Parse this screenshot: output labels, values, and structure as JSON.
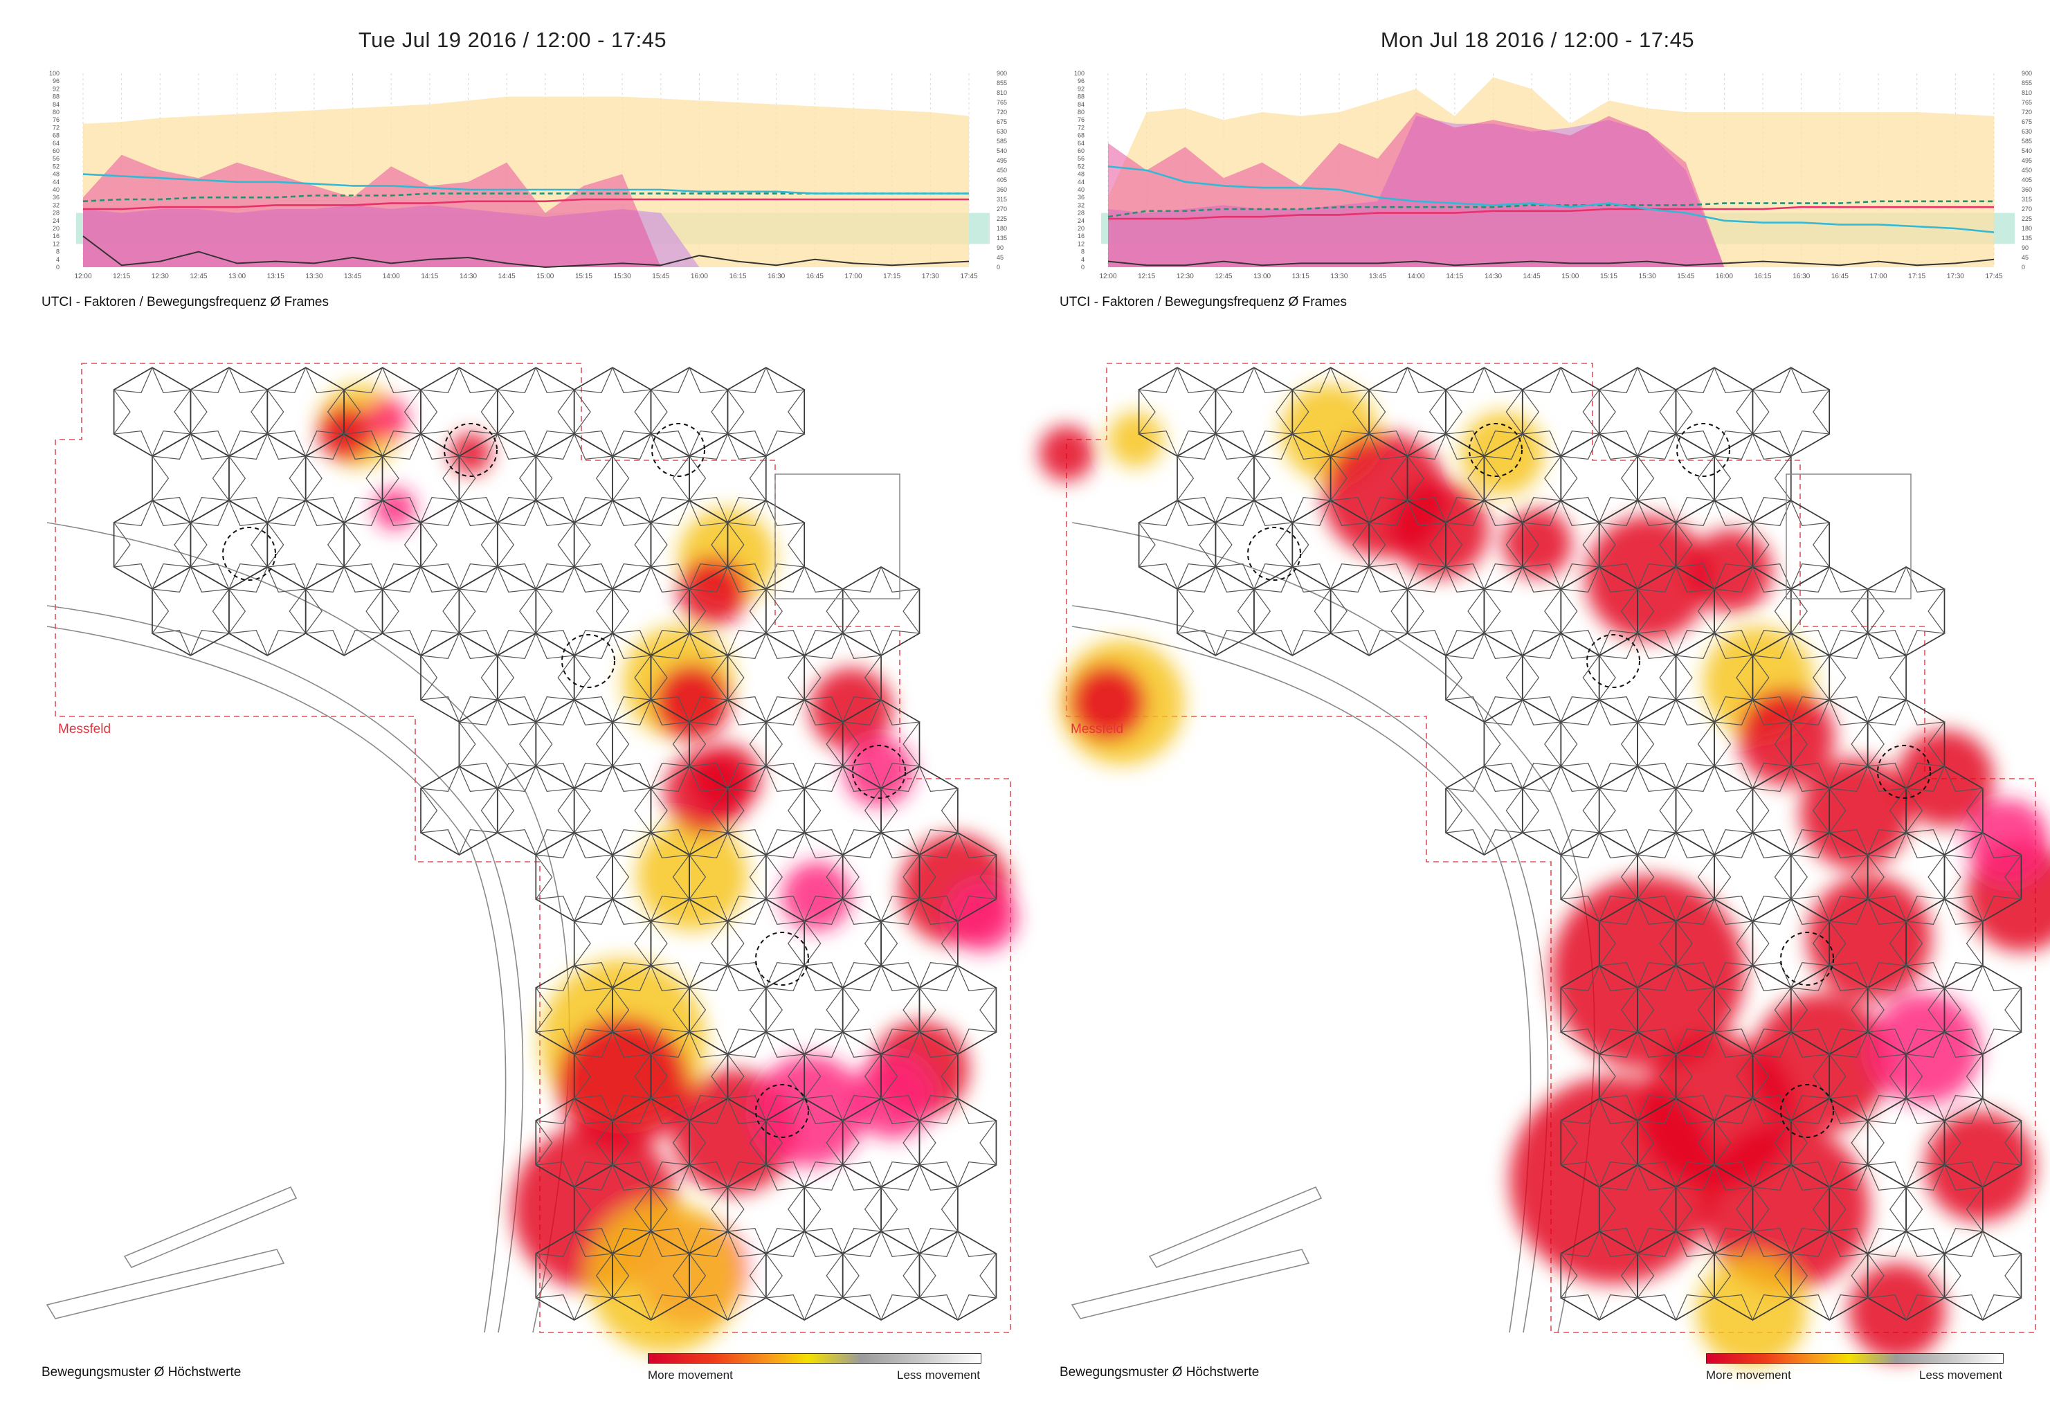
{
  "legend": {
    "more": "More movement",
    "less": "Less movement"
  },
  "captions": {
    "chart": "UTCI - Faktoren / Bewegungsfrequenz Ø Frames",
    "map": "Bewegungsmuster Ø Höchstwerte",
    "map_right": "Bewegungsmuster  Ø Höchstwerte",
    "field": "Messfeld"
  },
  "colors": {
    "yellow_area": "#fde2a6",
    "pink_area": "#e8539f",
    "violet_area": "#c98be6",
    "band": "#bfe9dc",
    "cyan": "#35b8d4",
    "red": "#e8306a",
    "teal_dash": "#2a8f72",
    "black": "#333333",
    "heat_red": "#e3001b",
    "heat_magenta": "#ff1f7a",
    "heat_yellow": "#f6c319"
  },
  "chart_data": [
    {
      "type": "area",
      "title": "Tue Jul 19 2016  /  12:00 - 17:45",
      "ylim": [
        0,
        100
      ],
      "y2lim": [
        0,
        900
      ],
      "y_ticks": [
        "0",
        "4",
        "8",
        "12",
        "16",
        "20",
        "24",
        "28",
        "32",
        "36",
        "40",
        "44",
        "48",
        "52",
        "56",
        "60",
        "64",
        "68",
        "72",
        "76",
        "80",
        "84",
        "88",
        "92",
        "96",
        "100"
      ],
      "y2_ticks": [
        "0",
        "45",
        "90",
        "135",
        "180",
        "225",
        "270",
        "315",
        "360",
        "405",
        "450",
        "495",
        "540",
        "585",
        "630",
        "675",
        "720",
        "765",
        "810",
        "855",
        "900"
      ],
      "categories": [
        "12:00",
        "12:15",
        "12:30",
        "12:45",
        "13:00",
        "13:15",
        "13:30",
        "13:45",
        "14:00",
        "14:15",
        "14:30",
        "14:45",
        "15:00",
        "15:15",
        "15:30",
        "15:45",
        "16:00",
        "16:15",
        "16:30",
        "16:45",
        "17:00",
        "17:15",
        "17:30",
        "17:45"
      ],
      "comfort_band": [
        12,
        28
      ],
      "series": [
        {
          "name": "yellow-area",
          "kind": "area",
          "values": [
            74,
            75,
            77,
            78,
            79,
            80,
            81,
            82,
            83,
            84,
            86,
            88,
            88,
            88,
            88,
            87,
            86,
            85,
            84,
            83,
            82,
            81,
            80,
            78
          ]
        },
        {
          "name": "pink-area",
          "kind": "area",
          "values": [
            36,
            58,
            50,
            46,
            54,
            48,
            42,
            36,
            52,
            42,
            44,
            54,
            28,
            42,
            48,
            0,
            0,
            0,
            0,
            0,
            0,
            0,
            0,
            0
          ]
        },
        {
          "name": "violet-area",
          "kind": "area",
          "values": [
            30,
            28,
            30,
            30,
            28,
            30,
            30,
            32,
            30,
            32,
            30,
            28,
            26,
            28,
            30,
            28,
            0,
            0,
            0,
            0,
            0,
            0,
            0,
            0
          ]
        },
        {
          "name": "cyan-line",
          "kind": "line",
          "values": [
            48,
            47,
            46,
            45,
            44,
            44,
            43,
            42,
            42,
            41,
            40,
            40,
            40,
            40,
            40,
            40,
            39,
            39,
            39,
            38,
            38,
            38,
            38,
            38
          ]
        },
        {
          "name": "teal-dashed",
          "kind": "dashed",
          "values": [
            34,
            35,
            35,
            36,
            36,
            36,
            37,
            37,
            37,
            38,
            38,
            38,
            38,
            38,
            38,
            38,
            38,
            38,
            38,
            38,
            38,
            38,
            38,
            38
          ]
        },
        {
          "name": "red-line",
          "kind": "line",
          "values": [
            30,
            30,
            31,
            31,
            31,
            32,
            32,
            32,
            33,
            33,
            34,
            34,
            34,
            35,
            35,
            35,
            35,
            35,
            35,
            35,
            35,
            35,
            35,
            35
          ]
        },
        {
          "name": "black-line",
          "kind": "line",
          "values": [
            16,
            1,
            3,
            8,
            2,
            3,
            2,
            5,
            2,
            4,
            5,
            2,
            0,
            1,
            2,
            1,
            6,
            3,
            1,
            4,
            2,
            1,
            2,
            3
          ]
        }
      ]
    },
    {
      "type": "area",
      "title": "Mon Jul 18 2016  /  12:00 - 17:45",
      "ylim": [
        0,
        100
      ],
      "y2lim": [
        0,
        900
      ],
      "y_ticks": [
        "0",
        "4",
        "8",
        "12",
        "16",
        "20",
        "24",
        "28",
        "32",
        "36",
        "40",
        "44",
        "48",
        "52",
        "56",
        "60",
        "64",
        "68",
        "72",
        "76",
        "80",
        "84",
        "88",
        "92",
        "96",
        "100"
      ],
      "y2_ticks": [
        "0",
        "45",
        "90",
        "135",
        "180",
        "225",
        "270",
        "315",
        "360",
        "405",
        "450",
        "495",
        "540",
        "585",
        "630",
        "675",
        "720",
        "765",
        "810",
        "855",
        "900"
      ],
      "categories": [
        "12:00",
        "12:15",
        "12:30",
        "12:45",
        "13:00",
        "13:15",
        "13:30",
        "13:45",
        "14:00",
        "14:15",
        "14:30",
        "14:45",
        "15:00",
        "15:15",
        "15:30",
        "15:45",
        "16:00",
        "16:15",
        "16:30",
        "16:45",
        "17:00",
        "17:15",
        "17:30",
        "17:45"
      ],
      "comfort_band": [
        12,
        28
      ],
      "series": [
        {
          "name": "yellow-area",
          "kind": "area",
          "values": [
            36,
            80,
            82,
            76,
            80,
            78,
            80,
            86,
            92,
            78,
            98,
            92,
            74,
            86,
            82,
            80,
            80,
            80,
            80,
            80,
            80,
            80,
            79,
            78
          ]
        },
        {
          "name": "pink-area",
          "kind": "area",
          "values": [
            64,
            50,
            62,
            46,
            54,
            42,
            64,
            56,
            80,
            72,
            76,
            72,
            68,
            78,
            70,
            54,
            0,
            0,
            0,
            0,
            0,
            0,
            0,
            0
          ]
        },
        {
          "name": "violet-area",
          "kind": "area",
          "values": [
            30,
            28,
            30,
            32,
            30,
            30,
            32,
            34,
            78,
            74,
            74,
            70,
            72,
            76,
            70,
            50,
            0,
            0,
            0,
            0,
            0,
            0,
            0,
            0
          ]
        },
        {
          "name": "cyan-line",
          "kind": "line",
          "values": [
            52,
            50,
            44,
            42,
            41,
            41,
            40,
            36,
            34,
            33,
            32,
            33,
            31,
            33,
            30,
            28,
            24,
            23,
            23,
            22,
            22,
            21,
            20,
            18
          ]
        },
        {
          "name": "teal-dashed",
          "kind": "dashed",
          "values": [
            26,
            29,
            29,
            30,
            30,
            30,
            31,
            31,
            31,
            31,
            31,
            32,
            32,
            32,
            32,
            32,
            33,
            33,
            33,
            33,
            34,
            34,
            34,
            34
          ]
        },
        {
          "name": "red-line",
          "kind": "line",
          "values": [
            25,
            25,
            25,
            26,
            26,
            27,
            27,
            28,
            28,
            28,
            29,
            29,
            29,
            30,
            30,
            30,
            30,
            30,
            31,
            31,
            31,
            31,
            31,
            31
          ]
        },
        {
          "name": "black-line",
          "kind": "line",
          "values": [
            3,
            1,
            1,
            3,
            1,
            2,
            2,
            2,
            3,
            1,
            2,
            3,
            2,
            2,
            3,
            1,
            2,
            3,
            2,
            1,
            3,
            1,
            2,
            4
          ]
        }
      ]
    }
  ]
}
